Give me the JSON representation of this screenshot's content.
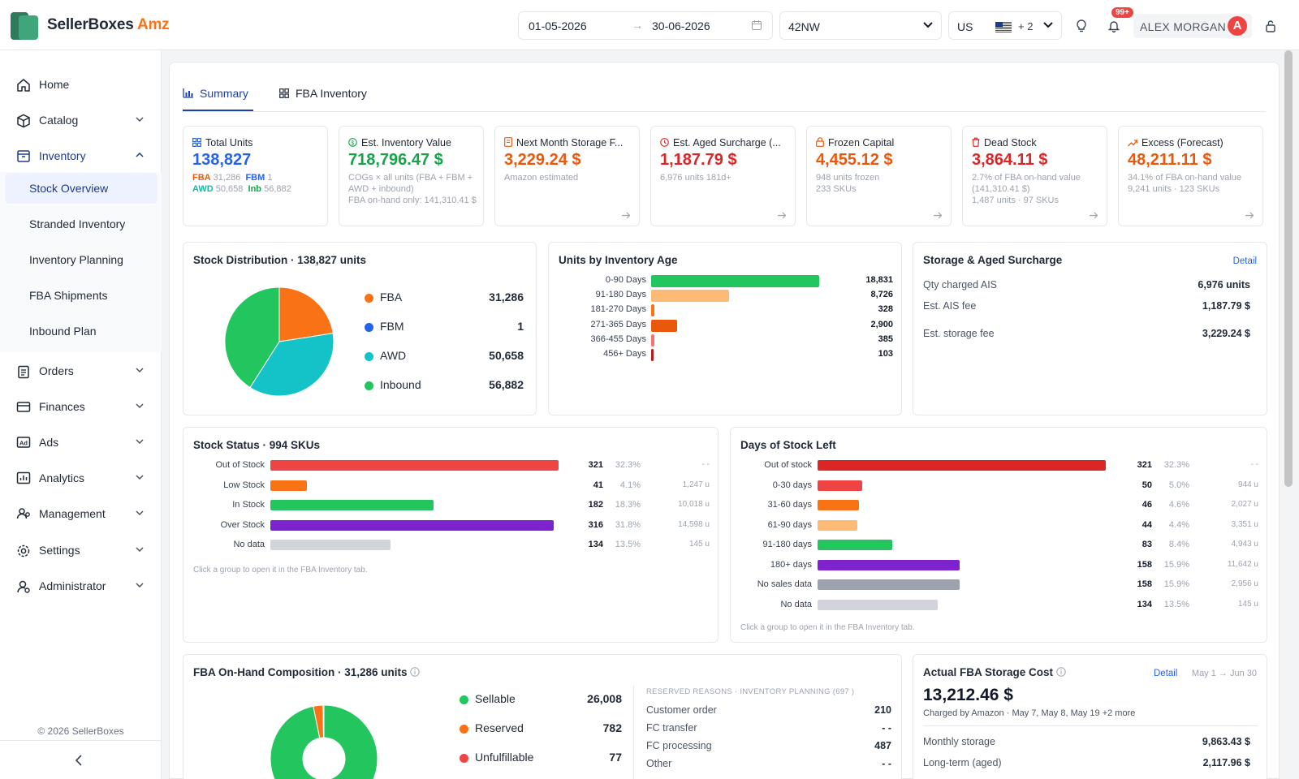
{
  "app": {
    "brand_main": "SellerBoxes",
    "brand_accent": "Amz"
  },
  "topbar": {
    "date_from": "01-05-2026",
    "date_arrow": "→",
    "date_to": "30-06-2026",
    "store": "42NW",
    "marketplace": "US",
    "marketplace_extra": "+ 2",
    "notif_count": "99+",
    "user_name": "ALEX MORGAN",
    "user_initial": "A"
  },
  "sidebar": {
    "items": [
      {
        "label": "Home",
        "icon": "home-icon"
      },
      {
        "label": "Catalog",
        "icon": "box-icon"
      },
      {
        "label": "Inventory",
        "icon": "archive-icon"
      },
      {
        "label": "Orders",
        "icon": "clipboard-icon"
      },
      {
        "label": "Finances",
        "icon": "card-icon"
      },
      {
        "label": "Ads",
        "icon": "ad-icon"
      },
      {
        "label": "Analytics",
        "icon": "chart-icon"
      },
      {
        "label": "Management",
        "icon": "users-icon"
      },
      {
        "label": "Settings",
        "icon": "gear-icon"
      },
      {
        "label": "Administrator",
        "icon": "admin-icon"
      }
    ],
    "sub_items": [
      "Stock Overview",
      "Stranded Inventory",
      "Inventory Planning",
      "FBA Shipments",
      "Inbound Plan"
    ],
    "copyright": "© 2026 SellerBoxes"
  },
  "tabs": [
    "Summary",
    "FBA Inventory"
  ],
  "kpis": [
    {
      "title": "Total Units",
      "value": "138,827",
      "color": "#2563eb",
      "fba_label": "FBA",
      "fba": "31,286",
      "fbm_label": "FBM",
      "fbm": "1",
      "awd_label": "AWD",
      "awd": "50,658",
      "inb_label": "Inb",
      "inb": "56,882"
    },
    {
      "title": "Est. Inventory Value",
      "value": "718,796.47 $",
      "color": "#16a34a",
      "sub": "COGs × all units (FBA + FBM + AWD + inbound)",
      "sub2": "FBA on-hand only: 141,310.41 $"
    },
    {
      "title": "Next Month Storage F...",
      "value": "3,229.24 $",
      "color": "#ea580c",
      "sub": "Amazon estimated"
    },
    {
      "title": "Est. Aged Surcharge (...",
      "value": "1,187.79 $",
      "color": "#dc2626",
      "sub": "6,976 units 181d+"
    },
    {
      "title": "Frozen Capital",
      "value": "4,455.12 $",
      "color": "#ea580c",
      "sub": "948 units frozen",
      "sub2": "233 SKUs"
    },
    {
      "title": "Dead Stock",
      "value": "3,864.11 $",
      "color": "#dc2626",
      "sub": "2.7% of FBA on-hand value (141,310.41 $)",
      "sub2": "1,487 units · 97 SKUs"
    },
    {
      "title": "Excess (Forecast)",
      "value": "48,211.11 $",
      "color": "#ea580c",
      "sub": "34.1% of FBA on-hand value",
      "sub2": "9,241 units · 123 SKUs"
    }
  ],
  "stock_distribution": {
    "title": "Stock Distribution · 138,827 units",
    "chart_data": {
      "type": "pie",
      "categories": [
        "FBA",
        "FBM",
        "AWD",
        "Inbound"
      ],
      "values": [
        31286,
        1,
        50658,
        56882
      ],
      "colors": [
        "#f97316",
        "#2563eb",
        "#14c3c7",
        "#22c55e"
      ]
    },
    "legend": [
      {
        "label": "FBA",
        "value": "31,286"
      },
      {
        "label": "FBM",
        "value": "1"
      },
      {
        "label": "AWD",
        "value": "50,658"
      },
      {
        "label": "Inbound",
        "value": "56,882"
      }
    ]
  },
  "inventory_age": {
    "title": "Units by Inventory Age",
    "chart_data": {
      "type": "bar",
      "categories": [
        "0-90 Days",
        "91-180 Days",
        "181-270 Days",
        "271-365 Days",
        "366-455 Days",
        "456+ Days"
      ],
      "values": [
        18831,
        8726,
        328,
        2900,
        385,
        103
      ],
      "colors": [
        "#22c55e",
        "#fdba74",
        "#f97316",
        "#ea580c",
        "#f87171",
        "#b91c1c"
      ],
      "labels": [
        "18,831",
        "8,726",
        "328",
        "2,900",
        "385",
        "103"
      ]
    }
  },
  "storage": {
    "title": "Storage & Aged Surcharge",
    "detail": "Detail",
    "rows": [
      {
        "k": "Qty charged AIS",
        "v": "6,976 units"
      },
      {
        "k": "Est. AIS fee",
        "v": "1,187.79 $"
      },
      {
        "k": "Est. storage fee",
        "v": "3,229.24 $"
      }
    ]
  },
  "stock_status": {
    "title": "Stock Status · 994 SKUs",
    "note": "Click a group to open it in the FBA Inventory tab.",
    "chart_data": {
      "type": "bar",
      "categories": [
        "Out of Stock",
        "Low Stock",
        "In Stock",
        "Over Stock",
        "No data"
      ],
      "values": [
        321,
        41,
        182,
        316,
        134
      ],
      "percents": [
        "32.3%",
        "4.1%",
        "18.3%",
        "31.8%",
        "13.5%"
      ],
      "units": [
        "- -",
        "1,247 u",
        "10,018 u",
        "14,598 u",
        "145 u"
      ],
      "colors": [
        "#ef4444",
        "#f97316",
        "#22c55e",
        "#7e22ce",
        "#d1d5db"
      ]
    }
  },
  "days_left": {
    "title": "Days of Stock Left",
    "note": "Click a group to open it in the FBA Inventory tab.",
    "chart_data": {
      "type": "bar",
      "categories": [
        "Out of stock",
        "0-30 days",
        "31-60 days",
        "61-90 days",
        "91-180 days",
        "180+ days",
        "No sales data",
        "No data"
      ],
      "values": [
        321,
        50,
        46,
        44,
        83,
        158,
        158,
        134
      ],
      "percents": [
        "32.3%",
        "5.0%",
        "4.6%",
        "4.4%",
        "8.4%",
        "15.9%",
        "15.9%",
        "13.5%"
      ],
      "units": [
        "- -",
        "944 u",
        "2,027 u",
        "3,351 u",
        "4,943 u",
        "11,642 u",
        "2,956 u",
        "145 u"
      ],
      "colors": [
        "#dc2626",
        "#ef4444",
        "#f97316",
        "#fdba74",
        "#22c55e",
        "#7e22ce",
        "#9ca3af",
        "#d1d5db"
      ]
    }
  },
  "onhand": {
    "title": "FBA On-Hand Composition · 31,286 units",
    "chart_data": {
      "type": "pie",
      "categories": [
        "Sellable",
        "Reserved",
        "Unfulfillable"
      ],
      "values": [
        26008,
        782,
        77
      ],
      "colors": [
        "#22c55e",
        "#f97316",
        "#ef4444"
      ]
    },
    "legend": [
      {
        "label": "Sellable",
        "value": "26,008"
      },
      {
        "label": "Reserved",
        "value": "782"
      },
      {
        "label": "Unfulfillable",
        "value": "77"
      }
    ],
    "reserved_title": "RESERVED REASONS · INVENTORY PLANNING (697 )",
    "reasons": [
      {
        "k": "Customer order",
        "v": "210"
      },
      {
        "k": "FC transfer",
        "v": "- -"
      },
      {
        "k": "FC processing",
        "v": "487"
      },
      {
        "k": "Other",
        "v": "- -"
      }
    ]
  },
  "storage_cost": {
    "title": "Actual FBA Storage Cost",
    "detail": "Detail",
    "range": "May 1 → Jun 30",
    "value": "13,212.46 $",
    "sub": "Charged by Amazon · May 7, May 8, May 19 +2 more",
    "rows": [
      {
        "k": "Monthly storage",
        "v": "9,863.43 $"
      },
      {
        "k": "Long-term (aged)",
        "v": "2,117.96 $"
      }
    ]
  }
}
